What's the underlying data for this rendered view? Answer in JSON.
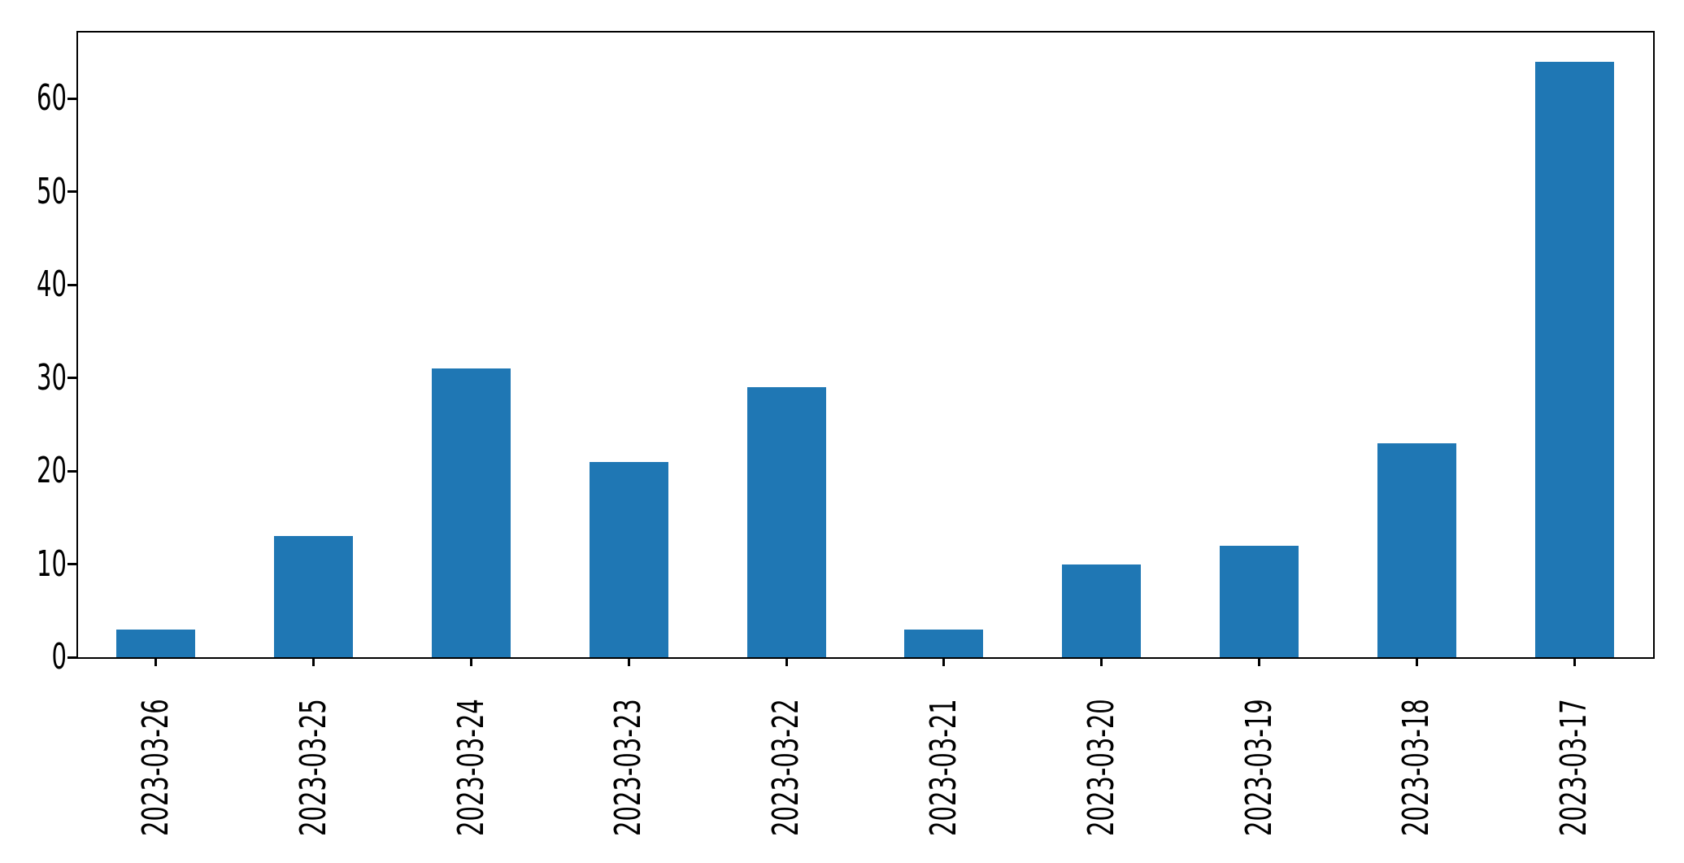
{
  "figure": {
    "background_color": "#ffffff",
    "spine_color": "#000000",
    "text_color": "#000000"
  },
  "chart_data": {
    "type": "bar",
    "title": "",
    "xlabel": "",
    "ylabel": "",
    "categories": [
      "2023-03-26",
      "2023-03-25",
      "2023-03-24",
      "2023-03-23",
      "2023-03-22",
      "2023-03-21",
      "2023-03-20",
      "2023-03-19",
      "2023-03-18",
      "2023-03-17"
    ],
    "values": [
      3,
      13,
      31,
      21,
      29,
      3,
      10,
      12,
      23,
      64
    ],
    "bar_color": "#1f77b4",
    "bar_width_fraction": 0.5,
    "yticks": [
      0,
      10,
      20,
      30,
      40,
      50,
      60
    ],
    "ylim": [
      0,
      67.2
    ],
    "x_tick_label_rotation_deg": 90,
    "grid": false,
    "legend": "none",
    "spines": "full-box"
  }
}
